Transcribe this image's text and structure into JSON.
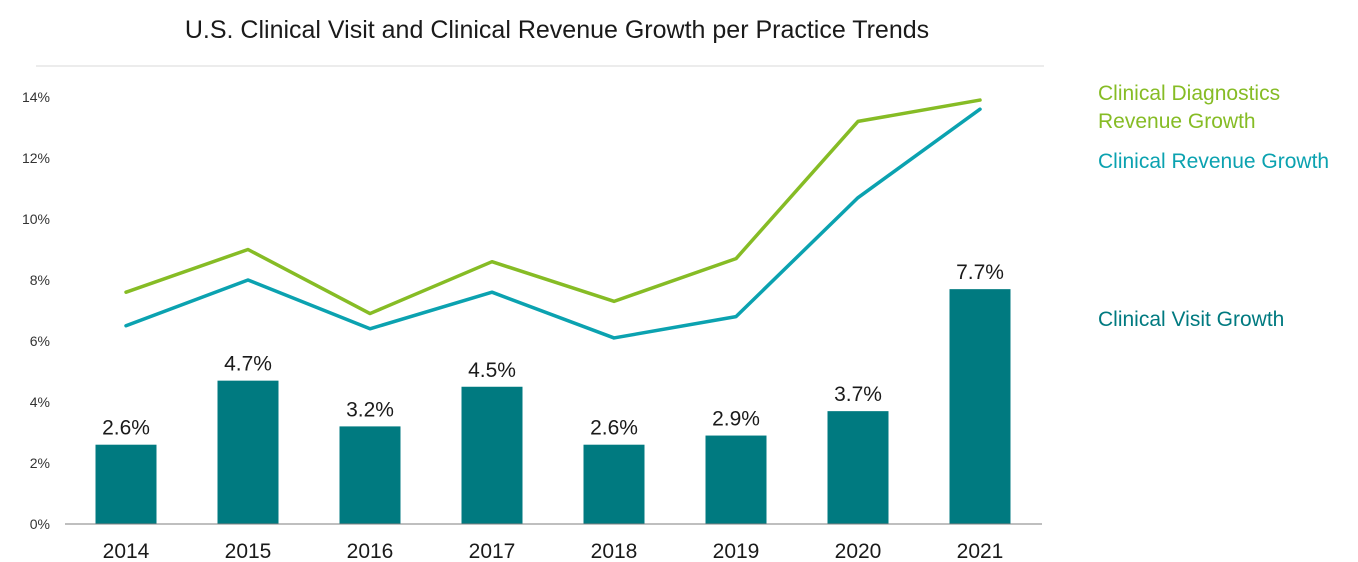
{
  "chart_data": {
    "type": "bar",
    "title": "U.S. Clinical Visit and Clinical Revenue Growth per Practice Trends",
    "categories": [
      "2014",
      "2015",
      "2016",
      "2017",
      "2018",
      "2019",
      "2020",
      "2021"
    ],
    "y_ticks": [
      "0%",
      "2%",
      "4%",
      "6%",
      "8%",
      "10%",
      "12%",
      "14%"
    ],
    "ylim": [
      0,
      14
    ],
    "grid": false,
    "legend_position": "right",
    "series": [
      {
        "name": "Clinical Visit Growth",
        "type": "bar",
        "color": "#007a80",
        "values": [
          2.6,
          4.7,
          3.2,
          4.5,
          2.6,
          2.9,
          3.7,
          7.7
        ],
        "labels": [
          "2.6%",
          "4.7%",
          "3.2%",
          "4.5%",
          "2.6%",
          "2.9%",
          "3.7%",
          "7.7%"
        ]
      },
      {
        "name": "Clinical Diagnostics Revenue Growth",
        "name_lines": [
          "Clinical Diagnostics",
          "Revenue Growth"
        ],
        "type": "line",
        "color": "#86bc25",
        "values": [
          7.6,
          9.0,
          6.9,
          8.6,
          7.3,
          8.7,
          13.2,
          13.9
        ]
      },
      {
        "name": "Clinical Revenue Growth",
        "type": "line",
        "color": "#0ba2b0",
        "values": [
          6.5,
          8.0,
          6.4,
          7.6,
          6.1,
          6.8,
          10.7,
          13.6
        ]
      }
    ]
  }
}
